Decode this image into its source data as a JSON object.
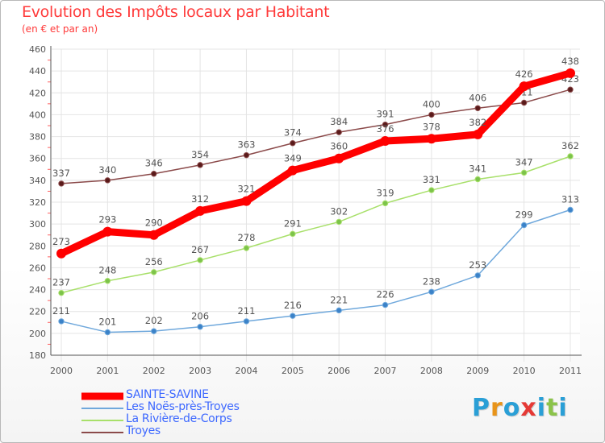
{
  "header": {
    "title": "Evolution des Impôts locaux par Habitant",
    "subtitle": "(en € et par an)"
  },
  "logo": {
    "text": "Proxiti",
    "letter_colors": [
      "#2a9fd6",
      "#e8941a",
      "#2a9fd6",
      "#e53935",
      "#2a9fd6",
      "#8bc34a",
      "#2a9fd6"
    ]
  },
  "chart_data": {
    "type": "line",
    "x": [
      "2000",
      "2001",
      "2002",
      "2003",
      "2004",
      "2005",
      "2006",
      "2007",
      "2008",
      "2009",
      "2010",
      "2011"
    ],
    "ylim": [
      180,
      460
    ],
    "yticks": [
      180,
      200,
      220,
      240,
      260,
      280,
      300,
      320,
      340,
      360,
      380,
      400,
      420,
      440,
      460
    ],
    "grid": true,
    "legend_placement": "bottom-left",
    "series": [
      {
        "name": "SAINTE-SAVINE",
        "color": "#ff0000",
        "emphasis": true,
        "values": [
          273,
          293,
          290,
          312,
          321,
          349,
          360,
          376,
          378,
          382,
          426,
          438
        ]
      },
      {
        "name": "Les Noës-près-Troyes",
        "color": "#6fa8dc",
        "marker": "#3b82c8",
        "values": [
          211,
          201,
          202,
          206,
          211,
          216,
          221,
          226,
          238,
          253,
          299,
          313
        ]
      },
      {
        "name": "La Rivière-de-Corps",
        "color": "#a8e06a",
        "marker": "#7cc34a",
        "values": [
          237,
          248,
          256,
          267,
          278,
          291,
          302,
          319,
          331,
          341,
          347,
          362
        ]
      },
      {
        "name": "Troyes",
        "color": "#8b4a4a",
        "marker": "#5a1a1a",
        "values": [
          337,
          340,
          346,
          354,
          363,
          374,
          384,
          391,
          400,
          406,
          411,
          423
        ]
      }
    ]
  }
}
